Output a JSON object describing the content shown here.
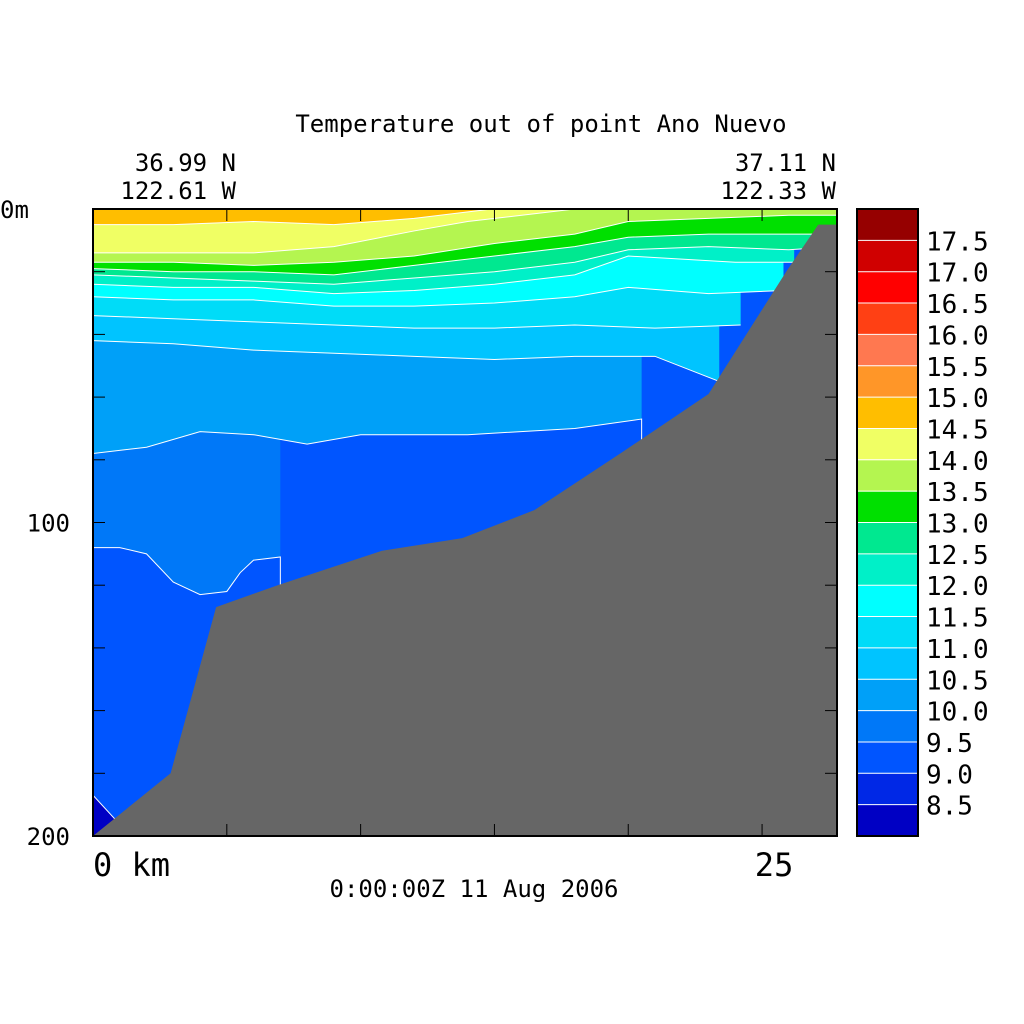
{
  "chart_data": {
    "type": "heatmap",
    "title": "Temperature out of point Ano Nuevo",
    "left_position": {
      "lat": "36.99 N",
      "lon": "122.61 W"
    },
    "right_position": {
      "lat": "37.11 N",
      "lon": "122.33 W"
    },
    "timestamp": "0:00:00Z  11 Aug 2006",
    "x_axis": {
      "labels": [
        {
          "value": 0,
          "text": "0 km"
        },
        {
          "value": 25,
          "text": "25"
        }
      ],
      "range": [
        0,
        27.8
      ],
      "units": "km"
    },
    "y_axis": {
      "labels": [
        {
          "value": 0,
          "text": "0m"
        },
        {
          "value": 100,
          "text": "100"
        },
        {
          "value": 200,
          "text": "200"
        }
      ],
      "range": [
        0,
        200
      ],
      "units": "m",
      "inverted": true
    },
    "colorbar": {
      "levels": [
        8.5,
        9.0,
        9.5,
        10.0,
        10.5,
        11.0,
        11.5,
        12.0,
        12.5,
        13.0,
        13.5,
        14.0,
        14.5,
        15.0,
        15.5,
        16.0,
        16.5,
        17.0,
        17.5
      ],
      "level_labels": [
        "8.5",
        "9.0",
        "9.5",
        "10.0",
        "10.5",
        "11.0",
        "11.5",
        "12.0",
        "12.5",
        "13.0",
        "13.5",
        "14.0",
        "14.5",
        "15.0",
        "15.5",
        "16.0",
        "16.5",
        "17.0",
        "17.5"
      ],
      "colors": [
        "#0000c4",
        "#0028e6",
        "#0055ff",
        "#0078f8",
        "#00a0f8",
        "#00c4ff",
        "#00dcf8",
        "#00ffff",
        "#00f0c8",
        "#00e890",
        "#00e000",
        "#b4f550",
        "#f0ff64",
        "#ffbe00",
        "#ff9628",
        "#ff7850",
        "#ff4014",
        "#ff0000",
        "#d00000",
        "#960000"
      ]
    },
    "bathymetry_depth_m": [
      [
        0.0,
        200
      ],
      [
        2.9,
        180
      ],
      [
        4.6,
        127
      ],
      [
        6.9,
        120
      ],
      [
        10.8,
        109
      ],
      [
        13.8,
        105
      ],
      [
        16.5,
        96
      ],
      [
        19.7,
        78
      ],
      [
        23.0,
        59
      ],
      [
        25.9,
        20
      ],
      [
        27.1,
        5
      ],
      [
        27.8,
        5
      ]
    ],
    "contours": [
      {
        "level": 14.5,
        "depth_m": [
          [
            0,
            5
          ],
          [
            3,
            5
          ],
          [
            6,
            4
          ],
          [
            9,
            5
          ],
          [
            12,
            3
          ],
          [
            14.9,
            0
          ]
        ]
      },
      {
        "level": 14.0,
        "depth_m": [
          [
            0,
            14
          ],
          [
            3,
            14
          ],
          [
            6,
            14
          ],
          [
            9,
            12
          ],
          [
            12,
            7
          ],
          [
            14,
            4
          ],
          [
            18,
            0
          ]
        ]
      },
      {
        "level": 13.5,
        "depth_m": [
          [
            0,
            17
          ],
          [
            3,
            17
          ],
          [
            6,
            18
          ],
          [
            9,
            17
          ],
          [
            12,
            15
          ],
          [
            15,
            11
          ],
          [
            18,
            8
          ],
          [
            20,
            4
          ],
          [
            23,
            3
          ],
          [
            26,
            2
          ],
          [
            27.8,
            2
          ]
        ]
      },
      {
        "level": 13.0,
        "depth_m": [
          [
            0,
            19
          ],
          [
            3,
            20
          ],
          [
            6,
            20
          ],
          [
            9,
            21
          ],
          [
            12,
            18
          ],
          [
            15,
            15
          ],
          [
            18,
            12
          ],
          [
            20,
            9
          ],
          [
            23,
            8
          ],
          [
            26,
            8
          ],
          [
            27.8,
            8
          ]
        ]
      },
      {
        "level": 12.5,
        "depth_m": [
          [
            0,
            21
          ],
          [
            3,
            22
          ],
          [
            6,
            23
          ],
          [
            9,
            24
          ],
          [
            12,
            22
          ],
          [
            15,
            20
          ],
          [
            18,
            17
          ],
          [
            20,
            13
          ],
          [
            23,
            12
          ],
          [
            26,
            13
          ],
          [
            27.8,
            12
          ]
        ]
      },
      {
        "level": 12.0,
        "depth_m": [
          [
            0,
            24
          ],
          [
            3,
            25
          ],
          [
            6,
            25
          ],
          [
            9,
            27
          ],
          [
            12,
            26
          ],
          [
            15,
            24
          ],
          [
            18,
            21
          ],
          [
            20,
            15
          ],
          [
            24,
            17
          ],
          [
            26.2,
            17
          ]
        ]
      },
      {
        "level": 11.5,
        "depth_m": [
          [
            0,
            28
          ],
          [
            3,
            29
          ],
          [
            6,
            29
          ],
          [
            9,
            31
          ],
          [
            12,
            31
          ],
          [
            15,
            30
          ],
          [
            18,
            28
          ],
          [
            20,
            25
          ],
          [
            23,
            27
          ],
          [
            25.8,
            26
          ]
        ]
      },
      {
        "level": 11.0,
        "depth_m": [
          [
            0,
            34
          ],
          [
            3,
            35
          ],
          [
            6,
            36
          ],
          [
            9,
            37
          ],
          [
            12,
            38
          ],
          [
            15,
            38
          ],
          [
            18,
            37
          ],
          [
            21,
            38
          ],
          [
            24.2,
            37
          ]
        ]
      },
      {
        "level": 10.5,
        "depth_m": [
          [
            0,
            42
          ],
          [
            3,
            43
          ],
          [
            6,
            45
          ],
          [
            9,
            46
          ],
          [
            12,
            47
          ],
          [
            15,
            48
          ],
          [
            18,
            47
          ],
          [
            21,
            47
          ],
          [
            23.4,
            55
          ]
        ]
      },
      {
        "level": 10.0,
        "depth_m": [
          [
            0,
            78
          ],
          [
            2,
            76
          ],
          [
            4,
            71
          ],
          [
            6,
            72
          ],
          [
            8,
            75
          ],
          [
            10,
            72
          ],
          [
            14,
            72
          ],
          [
            18,
            70
          ],
          [
            20.5,
            67
          ],
          [
            20.5,
            74
          ]
        ]
      },
      {
        "level": 9.5,
        "depth_m": [
          [
            0,
            108
          ],
          [
            1,
            108
          ],
          [
            2,
            110
          ],
          [
            3,
            119
          ],
          [
            4,
            123
          ],
          [
            5,
            122
          ],
          [
            5.5,
            116
          ],
          [
            6,
            112
          ],
          [
            7,
            111
          ],
          [
            7,
            123
          ]
        ]
      },
      {
        "level": 8.5,
        "depth_m": [
          [
            0,
            187
          ],
          [
            1.4,
            200
          ]
        ]
      }
    ]
  }
}
